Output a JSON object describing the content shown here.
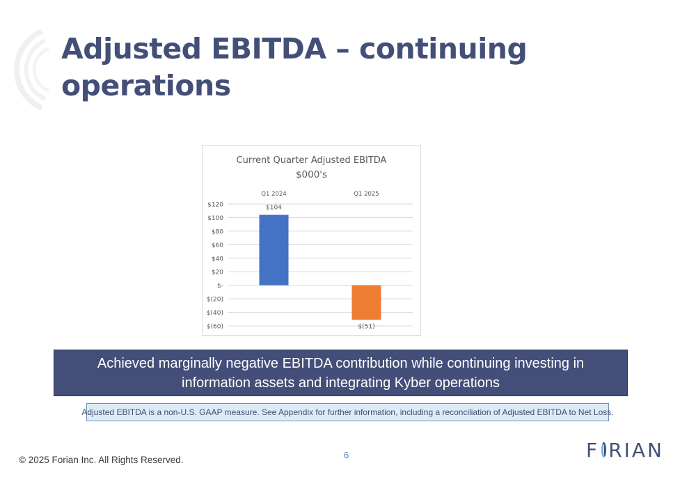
{
  "slide": {
    "title": "Adjusted EBITDA – continuing operations",
    "highlight": "Achieved marginally negative EBITDA contribution while continuing investing in information assets and integrating Kyber operations",
    "note": "Adjusted EBITDA is a non-U.S. GAAP measure. See Appendix for further information, including a reconciliation of Adjusted EBITDA to Net Loss.",
    "copyright": "© 2025 Forian Inc.  All Rights Reserved.",
    "page_number": "6",
    "logo": {
      "text_before": "F",
      "text_after": "RIAN",
      "icon": "forian-o-icon"
    }
  },
  "colors": {
    "accent": "#434f78",
    "bar_q1_2024": "#4472c4",
    "bar_q1_2025": "#ed7d31",
    "note_bg": "#dcebf7"
  },
  "chart_data": {
    "type": "bar",
    "title": "Current Quarter Adjusted EBITDA",
    "subtitle": "$000's",
    "categories": [
      "Q1 2024",
      "Q1 2025"
    ],
    "values": [
      104,
      -51
    ],
    "data_labels": [
      "$104",
      "$(51)"
    ],
    "ylim": [
      -60,
      120
    ],
    "yticks": [
      120,
      100,
      80,
      60,
      40,
      20,
      0,
      -20,
      -40,
      -60
    ],
    "ytick_labels": [
      "$120",
      "$100",
      "$80",
      "$60",
      "$40",
      "$20",
      "$-",
      "$(20)",
      "$(40)",
      "$(60)"
    ],
    "category_axis_position": "top",
    "grid": true,
    "legend": "none"
  }
}
